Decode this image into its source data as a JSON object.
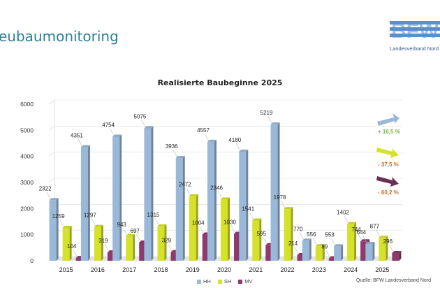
{
  "header": {
    "title": "eubaumonitoring",
    "logo_text": "BFW",
    "logo_subtitle": "Landesverband Nord"
  },
  "chart_data": {
    "type": "bar",
    "title": "Realisierte Baubeginne 2025",
    "categories": [
      "2015",
      "2016",
      "2017",
      "2018",
      "2019",
      "2020",
      "2021",
      "2022",
      "2023",
      "2024",
      "2025"
    ],
    "series": [
      {
        "name": "HH",
        "color": "#9ab8d8",
        "values": [
          2322,
          4351,
          4754,
          5075,
          3936,
          4557,
          4180,
          5219,
          770,
          553,
          644
        ]
      },
      {
        "name": "SH",
        "color": "#d6e22a",
        "values": [
          1259,
          1297,
          943,
          1315,
          2472,
          2346,
          1541,
          1978,
          556,
          1402,
          877
        ]
      },
      {
        "name": "MV",
        "color": "#8e3a6e",
        "values": [
          104,
          319,
          697,
          329,
          1004,
          1030,
          595,
          214,
          89,
          744,
          296
        ]
      }
    ],
    "ylim": [
      0,
      6000
    ],
    "yticks": [
      0,
      1000,
      2000,
      3000,
      4000,
      5000,
      6000
    ],
    "grid": true,
    "legend_position": "bottom",
    "source": "Quelle: BFW Landesverband Nord",
    "annotations": [
      {
        "label": "+ 16,5 %",
        "color": "#7ab648",
        "arrow_color": "#9ab8d8",
        "arrow_direction": "up"
      },
      {
        "label": "- 37,5 %",
        "color": "#d06a20",
        "arrow_color": "#d6e22a",
        "arrow_direction": "down"
      },
      {
        "label": "- 60,2 %",
        "color": "#d06a20",
        "arrow_color": "#6a3050",
        "arrow_direction": "down"
      }
    ]
  }
}
